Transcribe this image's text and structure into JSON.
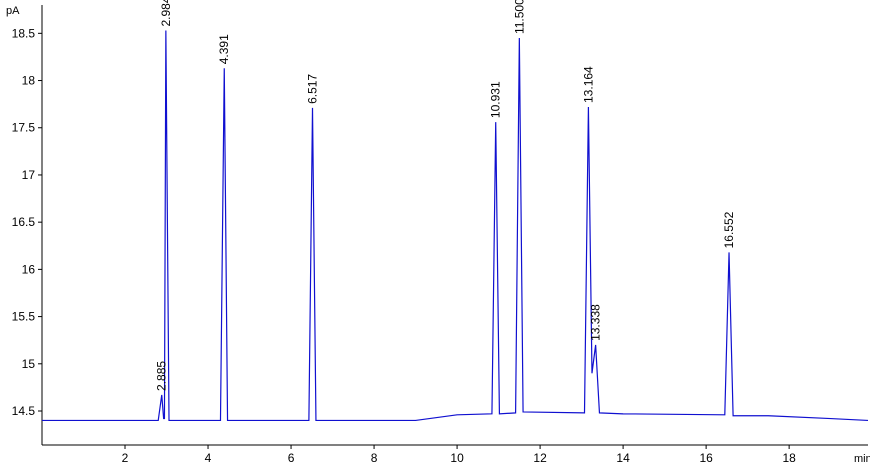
{
  "chart_data": {
    "type": "line",
    "y_unit": "pA",
    "x_unit": "min",
    "xlim": [
      0,
      19.9
    ],
    "ylim": [
      14.14,
      18.8
    ],
    "xticks": [
      2,
      4,
      6,
      8,
      10,
      12,
      14,
      16,
      18
    ],
    "yticks": [
      14.5,
      15,
      15.5,
      16,
      16.5,
      17,
      17.5,
      18,
      18.5
    ],
    "series": [
      {
        "color": "#1010d0",
        "x": [
          0,
          2.8,
          2.885,
          2.93,
          2.95,
          2.984,
          3.06,
          3.1,
          4.3,
          4.391,
          4.47,
          6.43,
          6.517,
          6.6,
          9.0,
          10.0,
          10.84,
          10.931,
          11.02,
          11.41,
          11.5,
          11.59,
          13.07,
          13.164,
          13.25,
          13.338,
          13.43,
          14.0,
          16.45,
          16.552,
          16.65,
          17.5,
          19.0,
          19.9
        ],
        "values": [
          14.4,
          14.4,
          14.67,
          14.42,
          14.42,
          18.53,
          14.4,
          14.4,
          14.4,
          18.13,
          14.4,
          14.4,
          17.71,
          14.4,
          14.4,
          14.46,
          14.47,
          17.56,
          14.47,
          14.48,
          18.45,
          14.49,
          14.48,
          17.72,
          14.9,
          15.2,
          14.48,
          14.47,
          14.46,
          16.18,
          14.45,
          14.45,
          14.42,
          14.4
        ]
      }
    ],
    "peaks": {
      "x": [
        2.885,
        2.984,
        4.391,
        6.517,
        10.931,
        11.5,
        13.164,
        13.338,
        16.552
      ],
      "y": [
        14.67,
        18.53,
        18.13,
        17.71,
        17.56,
        18.45,
        17.72,
        15.2,
        16.18
      ],
      "labels": [
        "2.885",
        "2.984",
        "4.391",
        "6.517",
        "10.931",
        "11.500",
        "13.164",
        "13.338",
        "16.552"
      ]
    }
  }
}
